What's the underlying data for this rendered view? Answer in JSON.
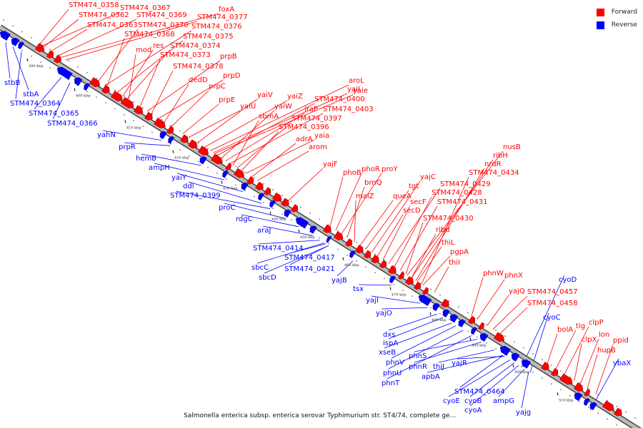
{
  "legend": {
    "forward_label": "Forward",
    "reverse_label": "Reverse",
    "forward_color": "#ff0000",
    "reverse_color": "#0000ff"
  },
  "caption": "Salmonella enterica subsp. enterica serovar Typhimurium str. ST4/74, complete ge...",
  "ticks": [
    "390 kbp",
    "400 kbp",
    "410 kbp",
    "420 kbp",
    "430 kbp",
    "440 kbp",
    "450 kbp",
    "460 kbp",
    "470 kbp",
    "480 kbp",
    "490 kbp",
    "500 kbp",
    "510 kbp"
  ],
  "forward_genes": [
    "STM474_0358",
    "STM474_0367",
    "foxA",
    "STM474_0362",
    "STM474_0369",
    "STM474_0377",
    "STM474_0363",
    "STM474_0370",
    "STM474_0376",
    "STM474_0368",
    "STM474_0375",
    "res",
    "STM474_0374",
    "mod",
    "STM474_0373",
    "prpB",
    "STM474_0378",
    "prpD",
    "dedD",
    "prpC",
    "prpE",
    "yaiU",
    "yaiV",
    "yaiZ",
    "aroL",
    "yaiI",
    "yaie",
    "STM474_0400",
    "yaiW",
    "iraP",
    "STM474_0403",
    "sbmA",
    "STM474_0397",
    "STM474_0396",
    "yaia",
    "adrA",
    "arom",
    "yajF",
    "phoB",
    "phoR",
    "proY",
    "brnQ",
    "malZ",
    "queA",
    "tgt",
    "yajC",
    "secD",
    "secF",
    "STM474_0429",
    "STM474_0428",
    "STM474_0431",
    "STM474_0430",
    "ribd",
    "thiL",
    "pgpA",
    "thiI",
    "phnW",
    "phnX",
    "yajQ",
    "STM474_0457",
    "STM474_0458",
    "bolA",
    "tig",
    "clpP",
    "clpX",
    "lon",
    "hupB",
    "ppid",
    "nusB",
    "ribH",
    "nrdR",
    "STM474_0434"
  ],
  "reverse_genes": [
    "stbB",
    "stbA",
    "STM474_0364",
    "STM474_0365",
    "STM474_0366",
    "yahN",
    "prpR",
    "hemB",
    "ampH",
    "yaiY",
    "ddl",
    "STM474_0399",
    "proC",
    "rdgC",
    "araJ",
    "STM474_0414",
    "sbcC",
    "STM474_0417",
    "sbcD",
    "STM474_0421",
    "yajB",
    "tsx",
    "yajI",
    "yajO",
    "dxs",
    "ispA",
    "xseB",
    "phnV",
    "phnU",
    "phnT",
    "phnS",
    "phnR",
    "thiJ",
    "apbA",
    "yajR",
    "cyoD",
    "cyoC",
    "ybaX",
    "STM474_0464",
    "cyoE",
    "cyoB",
    "cyoA",
    "ampG",
    "yajg"
  ]
}
